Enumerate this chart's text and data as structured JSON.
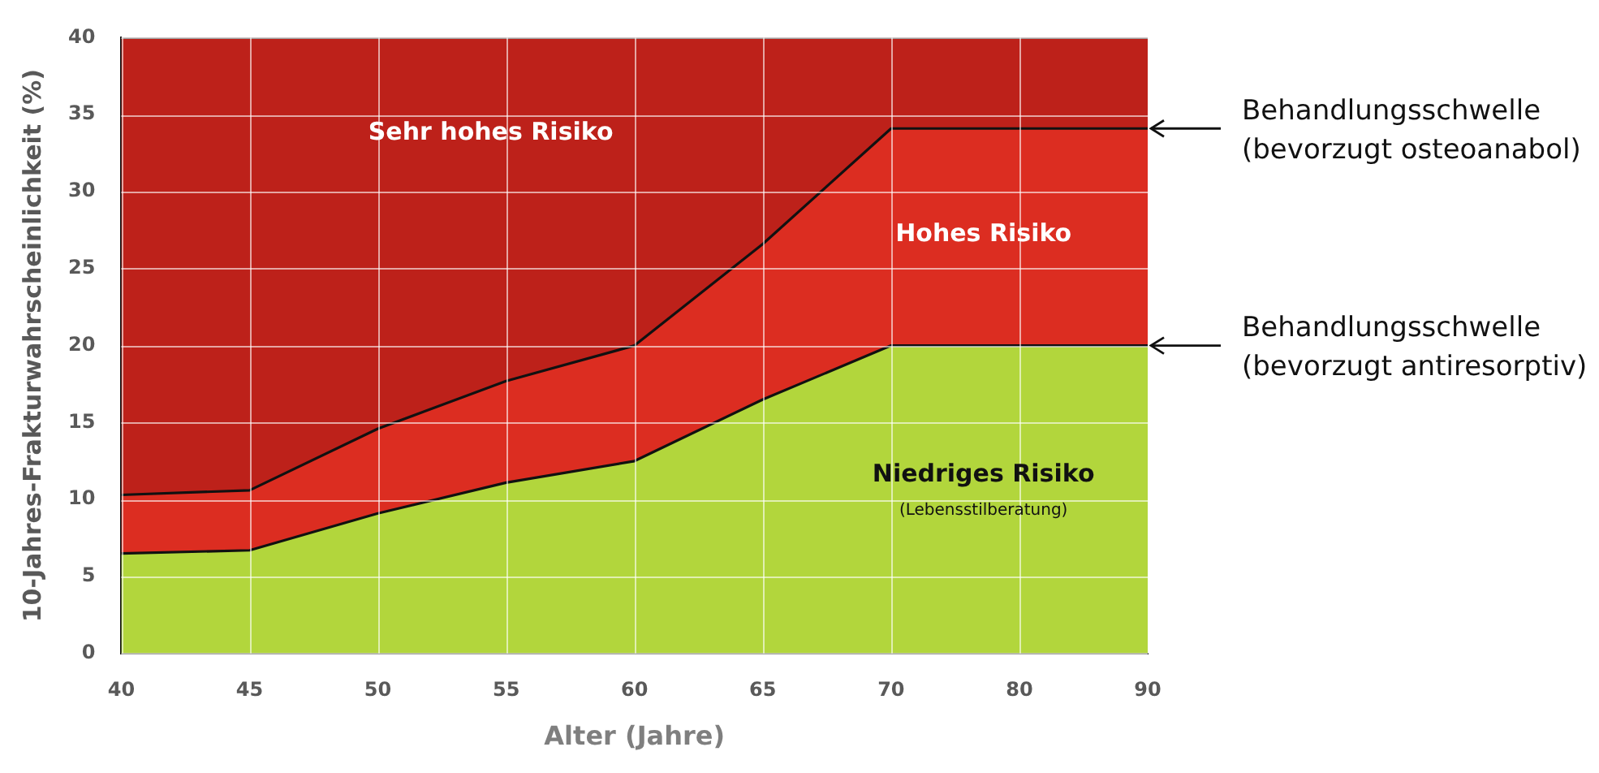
{
  "chart_data": {
    "type": "area",
    "xlabel": "Alter (Jahre)",
    "ylabel": "10-Jahres-Frakturwahrscheinlichkeit (%)",
    "categories": [
      "40",
      "45",
      "50",
      "55",
      "60",
      "65",
      "70",
      "80",
      "90"
    ],
    "series": [
      {
        "name": "Niedriges Risiko",
        "color": "#b2d63c",
        "values": [
          6.5,
          6.7,
          9.1,
          11.1,
          12.5,
          16.5,
          20,
          20,
          20
        ]
      },
      {
        "name": "Hohes Risiko",
        "color": "#dc2d21",
        "values": [
          10.3,
          10.6,
          14.6,
          17.7,
          20,
          26.6,
          34.1,
          34.1,
          34.1
        ]
      },
      {
        "name": "Sehr hohes Risiko",
        "color": "#bd211a",
        "values": [
          40,
          40,
          40,
          40,
          40,
          40,
          40,
          40,
          40
        ]
      }
    ],
    "ylim": [
      0,
      40
    ],
    "yticks": [
      0,
      5,
      10,
      15,
      20,
      25,
      30,
      35,
      40
    ],
    "grid": true,
    "legend": false,
    "annotations": [
      "(Lebensstilberatung)",
      "Behandlungsschwelle\n(bevorzugt osteoanabol)",
      "Behandlungsschwelle\n(bevorzugt antiresorptiv)"
    ]
  }
}
